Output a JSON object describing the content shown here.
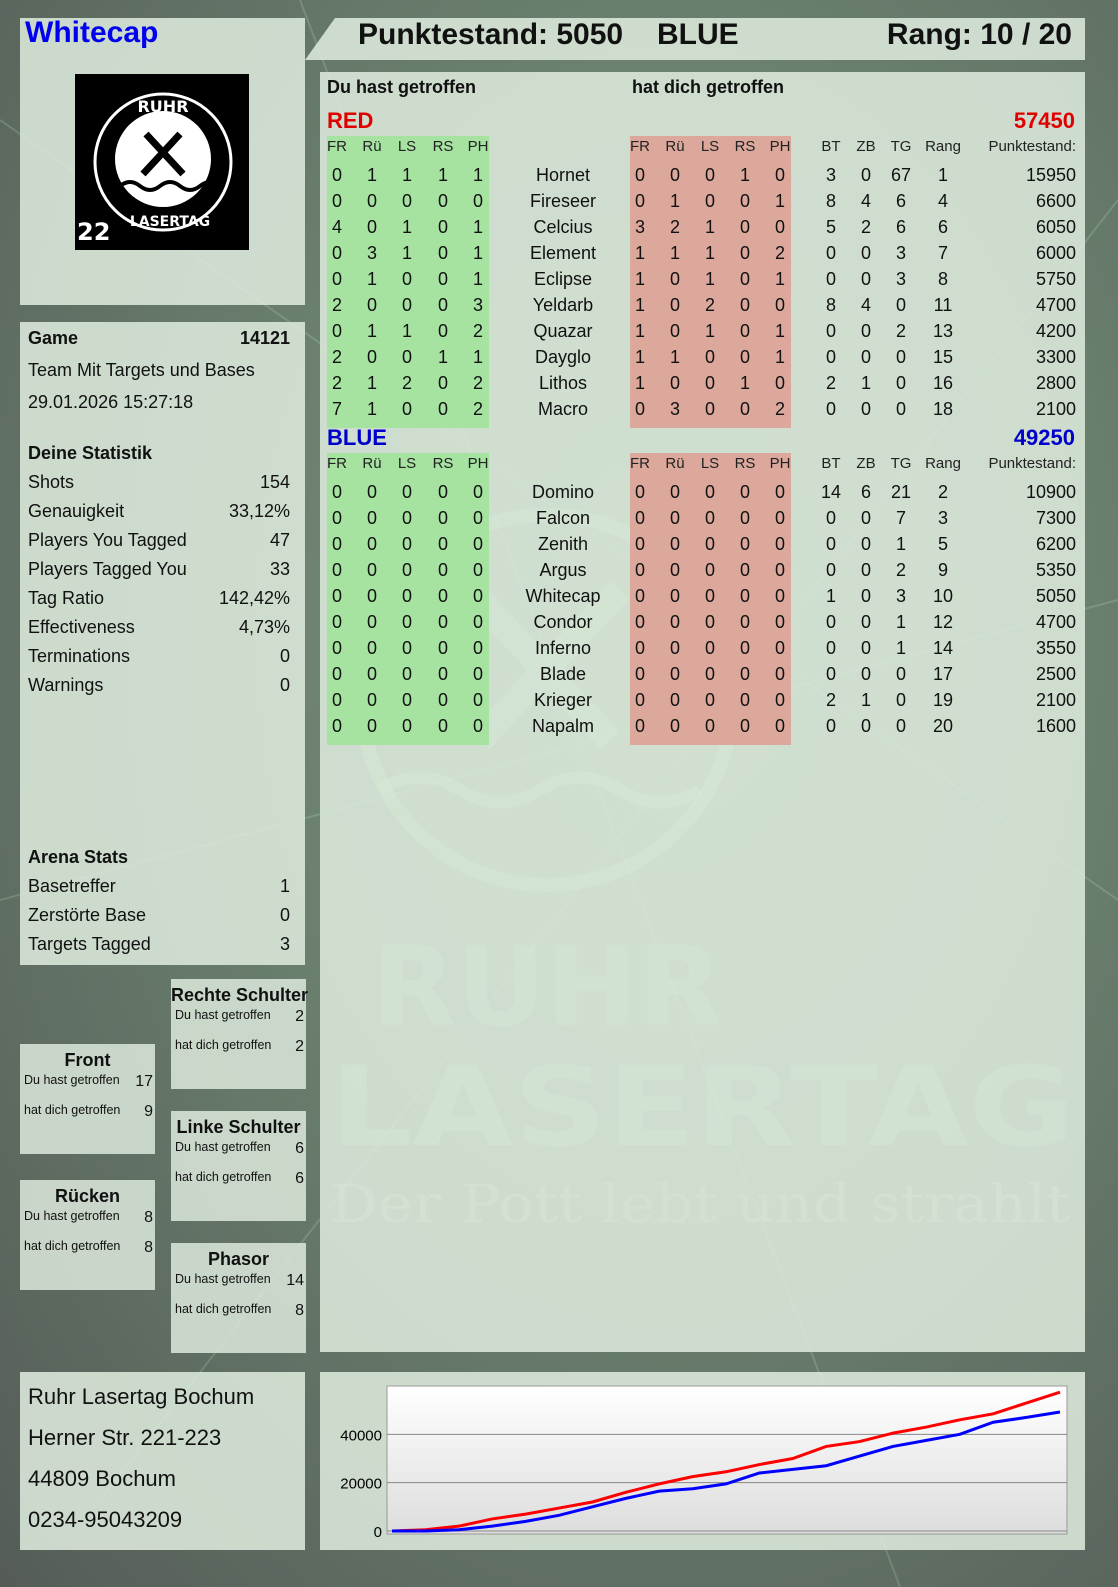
{
  "player": {
    "name": "Whitecap",
    "score_label": "Punktestand: 5050",
    "team": "BLUE",
    "rank_label": "Rang: 10 / 20"
  },
  "logo": {
    "text": "RUHR LASERTAG",
    "number": "22"
  },
  "watermark": {
    "line1": "RUHR",
    "line2": "LASERTAG",
    "slogan": "Der Pott lebt und strahlt"
  },
  "game": {
    "label": "Game",
    "id": "14121",
    "mode": "Team Mit Targets und Bases",
    "datetime": "29.01.2026 15:27:18"
  },
  "stats": {
    "title": "Deine Statistik",
    "rows": [
      {
        "label": "Shots",
        "value": "154"
      },
      {
        "label": "Genauigkeit",
        "value": "33,12%"
      },
      {
        "label": "Players You Tagged",
        "value": "47"
      },
      {
        "label": "Players Tagged You",
        "value": "33"
      },
      {
        "label": "Tag Ratio",
        "value": "142,42%"
      },
      {
        "label": "Effectiveness",
        "value": "4,73%"
      },
      {
        "label": "Terminations",
        "value": "0"
      },
      {
        "label": "Warnings",
        "value": "0"
      }
    ]
  },
  "arena": {
    "title": "Arena Stats",
    "rows": [
      {
        "label": "Basetreffer",
        "value": "1"
      },
      {
        "label": "Zerstörte Base",
        "value": "0"
      },
      {
        "label": "Targets Tagged",
        "value": "3"
      }
    ]
  },
  "zones": [
    {
      "title": "Rechte Schulter",
      "hit": "2",
      "got": "2"
    },
    {
      "title": "Front",
      "hit": "17",
      "got": "9"
    },
    {
      "title": "Linke Schulter",
      "hit": "6",
      "got": "6"
    },
    {
      "title": "Rücken",
      "hit": "8",
      "got": "8"
    },
    {
      "title": "Phasor",
      "hit": "14",
      "got": "8"
    }
  ],
  "zone_labels": {
    "hit": "Du hast getroffen",
    "got": "hat dich getroffen"
  },
  "table": {
    "hit_header": "Du hast getroffen",
    "got_header": "hat dich getroffen",
    "cols_hit": [
      "FR",
      "Rü",
      "LS",
      "RS",
      "PH"
    ],
    "cols_got": [
      "FR",
      "Rü",
      "LS",
      "RS",
      "PH"
    ],
    "cols_extra": [
      "BT",
      "ZB",
      "TG",
      "Rang"
    ],
    "score_col": "Punktestand:",
    "colors": {
      "hit_bg": "#a6e3a1",
      "got_bg": "#dca89c",
      "red": "#e00000",
      "blue": "#0000cc"
    },
    "teams": [
      {
        "name": "RED",
        "total": "57450",
        "color": "#e00000",
        "players": [
          {
            "n": "Hornet",
            "hit": [
              0,
              1,
              1,
              1,
              1
            ],
            "got": [
              0,
              0,
              0,
              1,
              0
            ],
            "ex": [
              3,
              0,
              67,
              1
            ],
            "pts": 15950
          },
          {
            "n": "Fireseer",
            "hit": [
              0,
              0,
              0,
              0,
              0
            ],
            "got": [
              0,
              1,
              0,
              0,
              1
            ],
            "ex": [
              8,
              4,
              6,
              4
            ],
            "pts": 6600
          },
          {
            "n": "Celcius",
            "hit": [
              4,
              0,
              1,
              0,
              1
            ],
            "got": [
              3,
              2,
              1,
              0,
              0
            ],
            "ex": [
              5,
              2,
              6,
              6
            ],
            "pts": 6050
          },
          {
            "n": "Element",
            "hit": [
              0,
              3,
              1,
              0,
              1
            ],
            "got": [
              1,
              1,
              1,
              0,
              2
            ],
            "ex": [
              0,
              0,
              3,
              7
            ],
            "pts": 6000
          },
          {
            "n": "Eclipse",
            "hit": [
              0,
              1,
              0,
              0,
              1
            ],
            "got": [
              1,
              0,
              1,
              0,
              1
            ],
            "ex": [
              0,
              0,
              3,
              8
            ],
            "pts": 5750
          },
          {
            "n": "Yeldarb",
            "hit": [
              2,
              0,
              0,
              0,
              3
            ],
            "got": [
              1,
              0,
              2,
              0,
              0
            ],
            "ex": [
              8,
              4,
              0,
              11
            ],
            "pts": 4700
          },
          {
            "n": "Quazar",
            "hit": [
              0,
              1,
              1,
              0,
              2
            ],
            "got": [
              1,
              0,
              1,
              0,
              1
            ],
            "ex": [
              0,
              0,
              2,
              13
            ],
            "pts": 4200
          },
          {
            "n": "Dayglo",
            "hit": [
              2,
              0,
              0,
              1,
              1
            ],
            "got": [
              1,
              1,
              0,
              0,
              1
            ],
            "ex": [
              0,
              0,
              0,
              15
            ],
            "pts": 3300
          },
          {
            "n": "Lithos",
            "hit": [
              2,
              1,
              2,
              0,
              2
            ],
            "got": [
              1,
              0,
              0,
              1,
              0
            ],
            "ex": [
              2,
              1,
              0,
              16
            ],
            "pts": 2800
          },
          {
            "n": "Macro",
            "hit": [
              7,
              1,
              0,
              0,
              2
            ],
            "got": [
              0,
              3,
              0,
              0,
              2
            ],
            "ex": [
              0,
              0,
              0,
              18
            ],
            "pts": 2100
          }
        ]
      },
      {
        "name": "BLUE",
        "total": "49250",
        "color": "#0000cc",
        "players": [
          {
            "n": "Domino",
            "hit": [
              0,
              0,
              0,
              0,
              0
            ],
            "got": [
              0,
              0,
              0,
              0,
              0
            ],
            "ex": [
              14,
              6,
              21,
              2
            ],
            "pts": 10900
          },
          {
            "n": "Falcon",
            "hit": [
              0,
              0,
              0,
              0,
              0
            ],
            "got": [
              0,
              0,
              0,
              0,
              0
            ],
            "ex": [
              0,
              0,
              7,
              3
            ],
            "pts": 7300
          },
          {
            "n": "Zenith",
            "hit": [
              0,
              0,
              0,
              0,
              0
            ],
            "got": [
              0,
              0,
              0,
              0,
              0
            ],
            "ex": [
              0,
              0,
              1,
              5
            ],
            "pts": 6200
          },
          {
            "n": "Argus",
            "hit": [
              0,
              0,
              0,
              0,
              0
            ],
            "got": [
              0,
              0,
              0,
              0,
              0
            ],
            "ex": [
              0,
              0,
              2,
              9
            ],
            "pts": 5350
          },
          {
            "n": "Whitecap",
            "hit": [
              0,
              0,
              0,
              0,
              0
            ],
            "got": [
              0,
              0,
              0,
              0,
              0
            ],
            "ex": [
              1,
              0,
              3,
              10
            ],
            "pts": 5050
          },
          {
            "n": "Condor",
            "hit": [
              0,
              0,
              0,
              0,
              0
            ],
            "got": [
              0,
              0,
              0,
              0,
              0
            ],
            "ex": [
              0,
              0,
              1,
              12
            ],
            "pts": 4700
          },
          {
            "n": "Inferno",
            "hit": [
              0,
              0,
              0,
              0,
              0
            ],
            "got": [
              0,
              0,
              0,
              0,
              0
            ],
            "ex": [
              0,
              0,
              1,
              14
            ],
            "pts": 3550
          },
          {
            "n": "Blade",
            "hit": [
              0,
              0,
              0,
              0,
              0
            ],
            "got": [
              0,
              0,
              0,
              0,
              0
            ],
            "ex": [
              0,
              0,
              0,
              17
            ],
            "pts": 2500
          },
          {
            "n": "Krieger",
            "hit": [
              0,
              0,
              0,
              0,
              0
            ],
            "got": [
              0,
              0,
              0,
              0,
              0
            ],
            "ex": [
              2,
              1,
              0,
              19
            ],
            "pts": 2100
          },
          {
            "n": "Napalm",
            "hit": [
              0,
              0,
              0,
              0,
              0
            ],
            "got": [
              0,
              0,
              0,
              0,
              0
            ],
            "ex": [
              0,
              0,
              0,
              20
            ],
            "pts": 1600
          }
        ]
      }
    ]
  },
  "address": {
    "lines": [
      "Ruhr Lasertag Bochum",
      "Herner Str. 221-223",
      "44809 Bochum",
      "0234-95043209"
    ]
  },
  "chart_data": {
    "type": "line",
    "ylim": [
      0,
      60000
    ],
    "yticks": [
      "0",
      "20000",
      "40000"
    ],
    "grid": true,
    "legend": "none",
    "series": [
      {
        "color": "#ff0000",
        "values": [
          0,
          500,
          2000,
          5000,
          7000,
          9500,
          12000,
          16000,
          19500,
          22500,
          24500,
          27500,
          30000,
          35000,
          37000,
          40500,
          43000,
          46000,
          48500,
          53000,
          57450
        ]
      },
      {
        "color": "#0000ff",
        "values": [
          0,
          0,
          500,
          2000,
          4000,
          6500,
          10000,
          13500,
          16500,
          17500,
          19500,
          24000,
          25500,
          27000,
          31000,
          35000,
          37500,
          40000,
          45000,
          47000,
          49250
        ]
      }
    ]
  }
}
